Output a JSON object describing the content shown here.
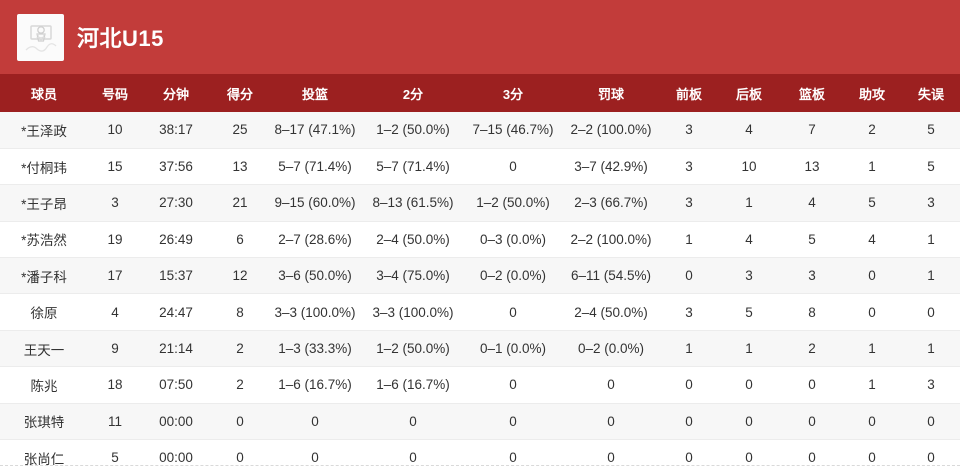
{
  "header": {
    "team_name": "河北U15",
    "logo_icon": "basketball-hoop-icon"
  },
  "table": {
    "columns": [
      {
        "id": "player",
        "label": "球员"
      },
      {
        "id": "number",
        "label": "号码"
      },
      {
        "id": "minutes",
        "label": "分钟"
      },
      {
        "id": "points",
        "label": "得分"
      },
      {
        "id": "fg",
        "label": "投篮"
      },
      {
        "id": "2pt",
        "label": "2分"
      },
      {
        "id": "3pt",
        "label": "3分"
      },
      {
        "id": "ft",
        "label": "罚球"
      },
      {
        "id": "oreb",
        "label": "前板"
      },
      {
        "id": "dreb",
        "label": "后板"
      },
      {
        "id": "reb",
        "label": "篮板"
      },
      {
        "id": "ast",
        "label": "助攻"
      },
      {
        "id": "tov",
        "label": "失误"
      }
    ],
    "rows": [
      [
        "*王泽政",
        "10",
        "38:17",
        "25",
        "8–17 (47.1%)",
        "1–2 (50.0%)",
        "7–15 (46.7%)",
        "2–2 (100.0%)",
        "3",
        "4",
        "7",
        "2",
        "5"
      ],
      [
        "*付桐玮",
        "15",
        "37:56",
        "13",
        "5–7 (71.4%)",
        "5–7 (71.4%)",
        "0",
        "3–7 (42.9%)",
        "3",
        "10",
        "13",
        "1",
        "5"
      ],
      [
        "*王子昂",
        "3",
        "27:30",
        "21",
        "9–15 (60.0%)",
        "8–13 (61.5%)",
        "1–2 (50.0%)",
        "2–3 (66.7%)",
        "3",
        "1",
        "4",
        "5",
        "3"
      ],
      [
        "*苏浩然",
        "19",
        "26:49",
        "6",
        "2–7 (28.6%)",
        "2–4 (50.0%)",
        "0–3 (0.0%)",
        "2–2 (100.0%)",
        "1",
        "4",
        "5",
        "4",
        "1"
      ],
      [
        "*潘子科",
        "17",
        "15:37",
        "12",
        "3–6 (50.0%)",
        "3–4 (75.0%)",
        "0–2 (0.0%)",
        "6–11 (54.5%)",
        "0",
        "3",
        "3",
        "0",
        "1"
      ],
      [
        "徐原",
        "4",
        "24:47",
        "8",
        "3–3 (100.0%)",
        "3–3 (100.0%)",
        "0",
        "2–4 (50.0%)",
        "3",
        "5",
        "8",
        "0",
        "0"
      ],
      [
        "王天一",
        "9",
        "21:14",
        "2",
        "1–3 (33.3%)",
        "1–2 (50.0%)",
        "0–1 (0.0%)",
        "0–2 (0.0%)",
        "1",
        "1",
        "2",
        "1",
        "1"
      ],
      [
        "陈兆",
        "18",
        "07:50",
        "2",
        "1–6 (16.7%)",
        "1–6 (16.7%)",
        "0",
        "0",
        "0",
        "0",
        "0",
        "1",
        "3"
      ],
      [
        "张琪特",
        "11",
        "00:00",
        "0",
        "0",
        "0",
        "0",
        "0",
        "0",
        "0",
        "0",
        "0",
        "0"
      ],
      [
        "张尚仁",
        "5",
        "00:00",
        "0",
        "0",
        "0",
        "0",
        "0",
        "0",
        "0",
        "0",
        "0",
        "0"
      ]
    ]
  },
  "colors": {
    "header_bg": "#c23c3a",
    "table_header_bg": "#9c2020",
    "row_alt_bg": "#f7f7f7",
    "text": "#333333"
  }
}
